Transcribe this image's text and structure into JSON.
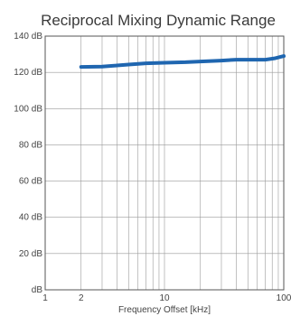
{
  "chart_data": {
    "type": "line",
    "title": "Reciprocal Mixing Dynamic Range",
    "xlabel": "Frequency Offset [kHz]",
    "ylabel": "",
    "x_scale": "log",
    "xlim": [
      1,
      100
    ],
    "ylim": [
      0,
      140
    ],
    "x_ticks": [
      1,
      2,
      10,
      100
    ],
    "x_tick_labels": [
      "1",
      "2",
      "10",
      "100"
    ],
    "y_ticks": [
      0,
      20,
      40,
      60,
      80,
      100,
      120,
      140
    ],
    "y_tick_labels": [
      "dB",
      "20 dB",
      "40 dB",
      "60 dB",
      "80 dB",
      "100 dB",
      "120 dB",
      "140 dB"
    ],
    "grid": true,
    "legend": "none",
    "series": [
      {
        "color": "#1f66b0",
        "x": [
          2,
          3,
          4,
          5,
          7,
          10,
          15,
          20,
          30,
          40,
          50,
          70,
          85,
          100
        ],
        "y": [
          123,
          123.2,
          123.8,
          124.3,
          125,
          125.3,
          125.6,
          126,
          126.5,
          127,
          127,
          127,
          127.8,
          129
        ]
      }
    ]
  }
}
